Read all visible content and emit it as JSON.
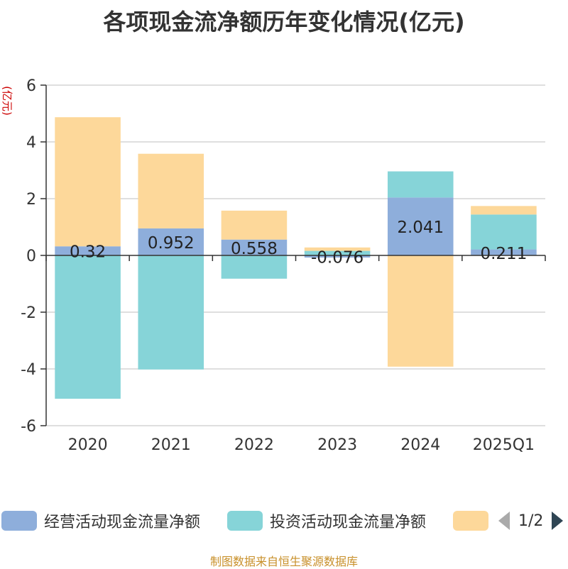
{
  "chart_data": {
    "type": "bar",
    "stacked": true,
    "title": "各项现金流净额历年变化情况(亿元)",
    "ylabel": "(亿元)",
    "ylim": [
      -6,
      6
    ],
    "yticks": [
      6,
      4,
      2,
      0,
      -2,
      -4,
      -6
    ],
    "categories": [
      "2020",
      "2021",
      "2022",
      "2023",
      "2024",
      "2025Q1"
    ],
    "grid": true,
    "legend_position": "bottom",
    "series": [
      {
        "name": "经营活动现金流量净额",
        "color": "#8eaedb",
        "values": [
          0.32,
          0.952,
          0.558,
          -0.076,
          2.041,
          0.211
        ],
        "labels": [
          "0.32",
          "0.952",
          "0.558",
          "-0.076",
          "2.041",
          "0.211"
        ]
      },
      {
        "name": "投资活动现金流量净额",
        "color": "#86d4d8",
        "values": [
          -5.05,
          -4.02,
          -0.82,
          0.16,
          0.92,
          1.23
        ]
      },
      {
        "name": "",
        "color": "#fdd89a",
        "values": [
          4.55,
          2.63,
          1.02,
          0.12,
          -3.92,
          0.3
        ]
      }
    ]
  },
  "legend": {
    "pager": "1/2"
  },
  "footer": {
    "source": "制图数据来自恒生聚源数据库"
  },
  "colors": {
    "axis": "#333333",
    "grid": "#cccccc",
    "prev_arrow": "#aaaaaa",
    "next_arrow": "#2f4554",
    "ylabel": "#cc0000"
  }
}
